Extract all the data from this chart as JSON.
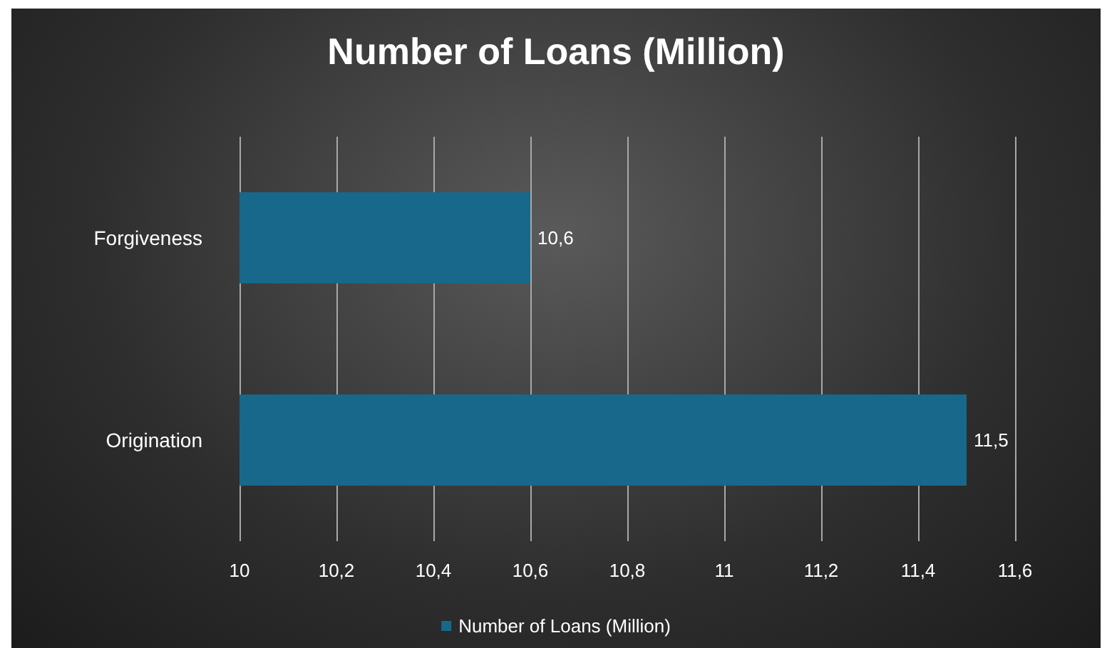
{
  "chart_data": {
    "type": "bar",
    "orientation": "horizontal",
    "title": "Number of Loans (Million)",
    "categories": [
      "Forgiveness",
      "Origination"
    ],
    "series": [
      {
        "name": "Number of Loans (Million)",
        "color": "#17688a",
        "values": [
          10.6,
          11.5
        ],
        "value_labels": [
          "10,6",
          "11,5"
        ]
      }
    ],
    "xlim": [
      10,
      11.6
    ],
    "xticks": [
      10,
      {
        "value": 10.2,
        "label": "10,2"
      },
      {
        "value": 10.4,
        "label": "10,4"
      },
      {
        "value": 10.6,
        "label": "10,6"
      },
      {
        "value": 10.8,
        "label": "10,8"
      },
      11,
      {
        "value": 11.2,
        "label": "11,2"
      },
      {
        "value": 11.4,
        "label": "11,4"
      },
      {
        "value": 11.6,
        "label": "11,6"
      }
    ],
    "grid": "x",
    "legend": "bottom"
  }
}
